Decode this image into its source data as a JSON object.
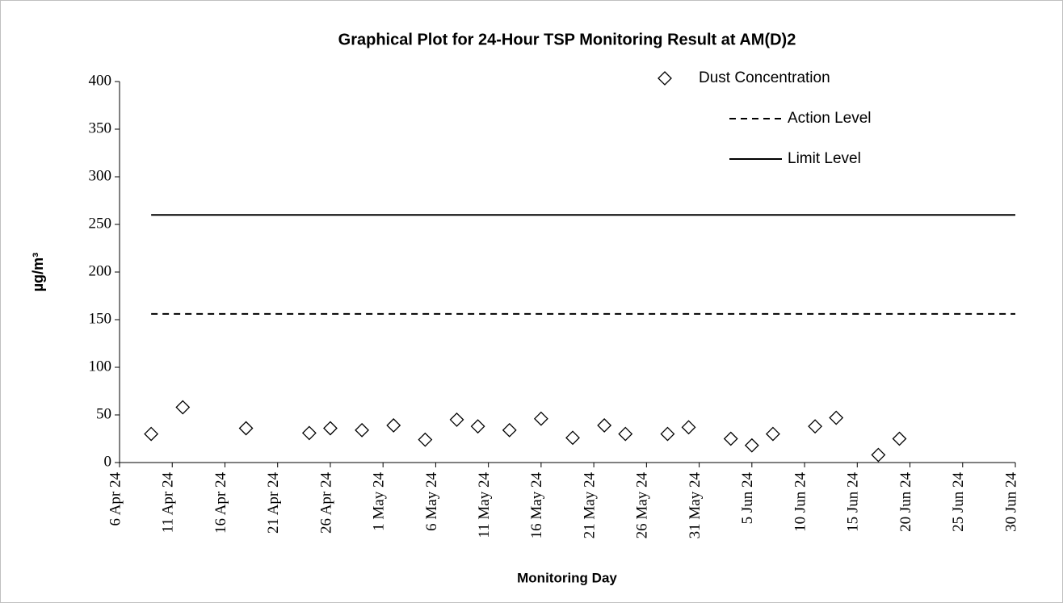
{
  "chart_data": {
    "type": "scatter",
    "title": "Graphical Plot for 24-Hour TSP Monitoring Result at AM(D)2",
    "x_label": "Monitoring Day",
    "y_label": "µg/m³",
    "legend": "upper right",
    "xlim": [
      "2024-04-06",
      "2024-06-30"
    ],
    "xticks": [
      {
        "value": "2024-04-06",
        "label": "6 Apr 24"
      },
      {
        "value": "2024-04-11",
        "label": "11 Apr 24"
      },
      {
        "value": "2024-04-16",
        "label": "16 Apr 24"
      },
      {
        "value": "2024-04-21",
        "label": "21 Apr 24"
      },
      {
        "value": "2024-04-26",
        "label": "26 Apr 24"
      },
      {
        "value": "2024-05-01",
        "label": "1 May 24"
      },
      {
        "value": "2024-05-06",
        "label": "6 May 24"
      },
      {
        "value": "2024-05-11",
        "label": "11 May 24"
      },
      {
        "value": "2024-05-16",
        "label": "16 May 24"
      },
      {
        "value": "2024-05-21",
        "label": "21 May 24"
      },
      {
        "value": "2024-05-26",
        "label": "26 May 24"
      },
      {
        "value": "2024-05-31",
        "label": "31 May 24"
      },
      {
        "value": "2024-06-05",
        "label": "5 Jun 24"
      },
      {
        "value": "2024-06-10",
        "label": "10 Jun 24"
      },
      {
        "value": "2024-06-15",
        "label": "15 Jun 24"
      },
      {
        "value": "2024-06-20",
        "label": "20 Jun 24"
      },
      {
        "value": "2024-06-25",
        "label": "25 Jun 24"
      },
      {
        "value": "2024-06-30",
        "label": "30 Jun 24"
      }
    ],
    "ylim": [
      0,
      400
    ],
    "yticks": [
      0,
      50,
      100,
      150,
      200,
      250,
      300,
      350,
      400
    ],
    "series": [
      {
        "name": "Dust Concentration",
        "type": "scatter",
        "marker": "diamond",
        "color": "#000000",
        "x": [
          "2024-04-09",
          "2024-04-12",
          "2024-04-18",
          "2024-04-24",
          "2024-04-26",
          "2024-04-29",
          "2024-05-02",
          "2024-05-05",
          "2024-05-08",
          "2024-05-10",
          "2024-05-13",
          "2024-05-16",
          "2024-05-19",
          "2024-05-22",
          "2024-05-24",
          "2024-05-28",
          "2024-05-30",
          "2024-06-03",
          "2024-06-05",
          "2024-06-07",
          "2024-06-11",
          "2024-06-13",
          "2024-06-17",
          "2024-06-19"
        ],
        "values": [
          30,
          58,
          36,
          31,
          36,
          34,
          39,
          24,
          45,
          38,
          34,
          46,
          26,
          39,
          30,
          30,
          37,
          25,
          18,
          30,
          38,
          47,
          8,
          25
        ]
      },
      {
        "name": "Action Level",
        "type": "line",
        "dash": "dashed",
        "color": "#000000",
        "x": [
          "2024-04-09",
          "2024-06-30"
        ],
        "values": [
          156,
          156
        ]
      },
      {
        "name": "Limit Level",
        "type": "line",
        "dash": "solid",
        "color": "#000000",
        "x": [
          "2024-04-09",
          "2024-06-30"
        ],
        "values": [
          260,
          260
        ]
      }
    ]
  }
}
